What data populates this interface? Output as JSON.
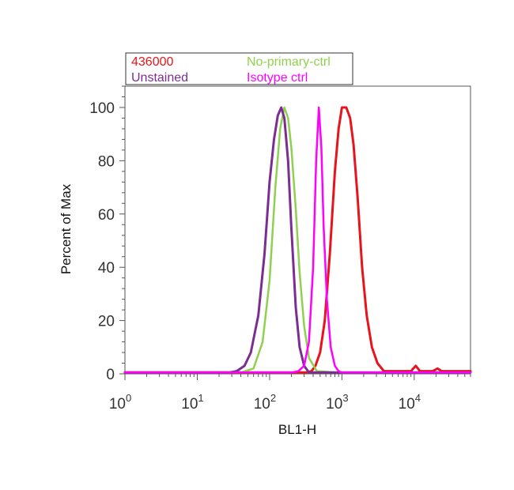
{
  "chart_data": {
    "type": "line",
    "xlabel": "BL1-H",
    "ylabel": "Percent of Max",
    "x_scale": "log",
    "xlim": [
      1,
      60000
    ],
    "ylim": [
      0,
      108
    ],
    "x_tick_bases": [
      "10",
      "10",
      "10",
      "10",
      "10"
    ],
    "x_tick_exps": [
      "0",
      "1",
      "2",
      "3",
      "4"
    ],
    "x_tick_values": [
      1,
      10,
      100,
      1000,
      10000
    ],
    "y_ticks": [
      "0",
      "20",
      "40",
      "60",
      "80",
      "100"
    ],
    "y_tick_values": [
      0,
      20,
      40,
      60,
      80,
      100
    ],
    "legend_position": "top",
    "series": [
      {
        "name": "436000",
        "color": "#e8141c",
        "x": [
          1,
          100,
          280,
          330,
          380,
          430,
          500,
          580,
          680,
          800,
          900,
          1000,
          1150,
          1300,
          1450,
          1650,
          1900,
          2200,
          2600,
          3100,
          3800,
          5000,
          7000,
          9000,
          10500,
          12000,
          18000,
          21000,
          24000,
          30000,
          60000
        ],
        "y": [
          0.5,
          0.5,
          0.5,
          0.5,
          1,
          3,
          8,
          20,
          45,
          76,
          92,
          100,
          100,
          96,
          86,
          66,
          40,
          22,
          10,
          4,
          1,
          1,
          1,
          1,
          3,
          1,
          1,
          2,
          1,
          1,
          1
        ]
      },
      {
        "name": "No-primary-ctrl",
        "color": "#8fd14f",
        "x": [
          1,
          40,
          60,
          80,
          100,
          120,
          140,
          160,
          180,
          200,
          230,
          260,
          300,
          350,
          450,
          800,
          60000
        ],
        "y": [
          0.5,
          0.5,
          2,
          12,
          35,
          70,
          92,
          100,
          96,
          85,
          62,
          38,
          18,
          6,
          1,
          0.5,
          0.5
        ],
        "width": 2.5
      },
      {
        "name": "Unstained",
        "color": "#7b2d92",
        "x": [
          1,
          28,
          35,
          45,
          55,
          70,
          85,
          100,
          115,
          130,
          145,
          160,
          180,
          200,
          230,
          260,
          300,
          350,
          60000
        ],
        "y": [
          0.5,
          0.5,
          1,
          3,
          8,
          22,
          45,
          72,
          88,
          97,
          100,
          96,
          80,
          55,
          25,
          10,
          3,
          0.5,
          0.5
        ],
        "width": 3
      },
      {
        "name": "Isotype ctrl",
        "color": "#ff00ff",
        "x": [
          1,
          200,
          250,
          300,
          350,
          400,
          440,
          480,
          520,
          560,
          620,
          700,
          800,
          900,
          1000,
          60000
        ],
        "y": [
          0.5,
          0.5,
          1,
          3,
          12,
          40,
          80,
          100,
          85,
          55,
          28,
          10,
          3,
          1,
          0.5,
          0.5
        ],
        "width": 2.5
      }
    ]
  }
}
